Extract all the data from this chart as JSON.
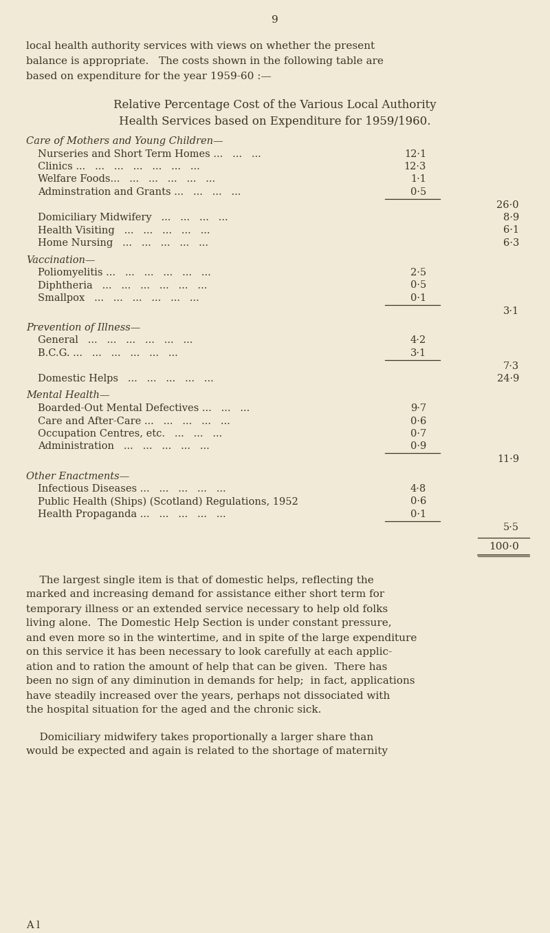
{
  "bg_color": "#f0ead6",
  "text_color": "#3a3525",
  "page_number": "9",
  "intro_lines": [
    "local health authority services with views on whether the present",
    "balance is appropriate.   The costs shown in the following table are",
    "based on expenditure for the year 1959-60 :—"
  ],
  "heading1": "Relative Percentage Cost of the Various Local Authority",
  "heading2": "Health Services based on Expenditure for 1959/1960.",
  "sections": [
    {
      "header": "Care of Mothers and Young Children—",
      "italic": true,
      "items": [
        {
          "indent": 1,
          "label": "Nurseries and Short Term Homes ...",
          "dots": "   ...   ...",
          "col1": "12·1",
          "col2": ""
        },
        {
          "indent": 1,
          "label": "Clinics ...",
          "dots": "   ...   ...   ...   ...   ...   ...",
          "col1": "12·3",
          "col2": ""
        },
        {
          "indent": 1,
          "label": "Welfare Foods...",
          "dots": "   ...   ...   ...   ...   ...",
          "col1": "1·1",
          "col2": ""
        },
        {
          "indent": 1,
          "label": "Adminstration and Grants ...",
          "dots": "   ...   ...   ...",
          "col1": "0·5",
          "col2": ""
        }
      ],
      "line_after_col": 1,
      "subtotal_col": 2,
      "subtotal": "26·0",
      "extra_items": [
        {
          "indent": 1,
          "label": "Domiciliary Midwifery",
          "dots": "   ...   ...   ...   ...",
          "col1": "",
          "col2": "8·9"
        },
        {
          "indent": 1,
          "label": "Health Visiting",
          "dots": "   ...   ...   ...   ...   ...",
          "col1": "",
          "col2": "6·1"
        },
        {
          "indent": 1,
          "label": "Home Nursing",
          "dots": "   ...   ...   ...   ...   ...",
          "col1": "",
          "col2": "6·3"
        }
      ]
    },
    {
      "header": "Vaccination—",
      "italic": true,
      "items": [
        {
          "indent": 1,
          "label": "Poliomyelitis ...",
          "dots": "   ...   ...   ...   ...   ...",
          "col1": "2·5",
          "col2": ""
        },
        {
          "indent": 1,
          "label": "Diphtheria",
          "dots": "   ...   ...   ...   ...   ...   ...",
          "col1": "0·5",
          "col2": ""
        },
        {
          "indent": 1,
          "label": "Smallpox",
          "dots": "   ...   ...   ...   ...   ...   ...",
          "col1": "0·1",
          "col2": ""
        }
      ],
      "line_after_col": 1,
      "subtotal_col": 2,
      "subtotal": "3·1",
      "extra_items": []
    },
    {
      "header": "Prevention of Illness—",
      "italic": true,
      "items": [
        {
          "indent": 1,
          "label": "General",
          "dots": "   ...   ...   ...   ...   ...   ...",
          "col1": "4·2",
          "col2": ""
        },
        {
          "indent": 1,
          "label": "B.C.G. ...",
          "dots": "   ...   ...   ...   ...   ...",
          "col1": "3·1",
          "col2": ""
        }
      ],
      "line_after_col": 1,
      "subtotal_col": 2,
      "subtotal": "7·3",
      "extra_items": [
        {
          "indent": 1,
          "label": "Domestic Helps",
          "dots": "   ...   ...   ...   ...   ...",
          "col1": "",
          "col2": "24·9"
        }
      ]
    },
    {
      "header": "Mental Health—",
      "italic": true,
      "items": [
        {
          "indent": 1,
          "label": "Boarded-Out Mental Defectives ...",
          "dots": "   ...   ...",
          "col1": "9·7",
          "col2": ""
        },
        {
          "indent": 1,
          "label": "Care and After-Care ...",
          "dots": "   ...   ...   ...   ...",
          "col1": "0·6",
          "col2": ""
        },
        {
          "indent": 1,
          "label": "Occupation Centres, etc.",
          "dots": "   ...   ...   ...",
          "col1": "0·7",
          "col2": ""
        },
        {
          "indent": 1,
          "label": "Administration",
          "dots": "   ...   ...   ...   ...   ...",
          "col1": "0·9",
          "col2": ""
        }
      ],
      "line_after_col": 1,
      "subtotal_col": 2,
      "subtotal": "11·9",
      "extra_items": []
    },
    {
      "header": "Other Enactments—",
      "italic": true,
      "items": [
        {
          "indent": 1,
          "label": "Infectious Diseases ...",
          "dots": "   ...   ...   ...   ...",
          "col1": "4·8",
          "col2": ""
        },
        {
          "indent": 1,
          "label": "Public Health (Ships) (Scotland) Regulations, 1952",
          "dots": "",
          "col1": "0·6",
          "col2": ""
        },
        {
          "indent": 1,
          "label": "Health Propaganda ...",
          "dots": "   ...   ...   ...   ...",
          "col1": "0·1",
          "col2": ""
        }
      ],
      "line_after_col": 1,
      "subtotal_col": 2,
      "subtotal": "5·5",
      "extra_items": []
    }
  ],
  "grand_total": "100·0",
  "para1_lines": [
    "    The largest single item is that of domestic helps, reflecting the",
    "marked and increasing demand for assistance either short term for",
    "temporary illness or an extended service necessary to help old folks",
    "living alone.  The Domestic Help Section is under constant pressure,",
    "and even more so in the wintertime, and in spite of the large expenditure",
    "on this service it has been necessary to look carefully at each applic-",
    "ation and to ration the amount of help that can be given.  There has",
    "been no sign of any diminution in demands for help;  in fact, applications",
    "have steadily increased over the years, perhaps not dissociated with",
    "the hospital situation for the aged and the chronic sick."
  ],
  "para2_lines": [
    "    Domiciliary midwifery takes proportionally a larger share than",
    "would be expected and again is related to the shortage of maternity"
  ],
  "footer_left": "A l"
}
